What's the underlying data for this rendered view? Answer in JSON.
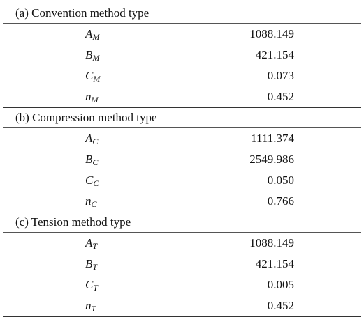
{
  "sections": [
    {
      "title": "(a) Convention method type",
      "rows": [
        {
          "symbol": "A",
          "sub": "M",
          "value": "1088.149"
        },
        {
          "symbol": "B",
          "sub": "M",
          "value": "421.154"
        },
        {
          "symbol": "C",
          "sub": "M",
          "value": "0.073"
        },
        {
          "symbol": "n",
          "sub": "M",
          "value": "0.452"
        }
      ]
    },
    {
      "title": "(b) Compression method type",
      "rows": [
        {
          "symbol": "A",
          "sub": "C",
          "value": "1111.374"
        },
        {
          "symbol": "B",
          "sub": "C",
          "value": "2549.986"
        },
        {
          "symbol": "C",
          "sub": "C",
          "value": "0.050"
        },
        {
          "symbol": "n",
          "sub": "C",
          "value": "0.766"
        }
      ]
    },
    {
      "title": "(c) Tension method type",
      "rows": [
        {
          "symbol": "A",
          "sub": "T",
          "value": "1088.149"
        },
        {
          "symbol": "B",
          "sub": "T",
          "value": "421.154"
        },
        {
          "symbol": "C",
          "sub": "T",
          "value": "0.005"
        },
        {
          "symbol": "n",
          "sub": "T",
          "value": "0.452"
        }
      ]
    }
  ]
}
